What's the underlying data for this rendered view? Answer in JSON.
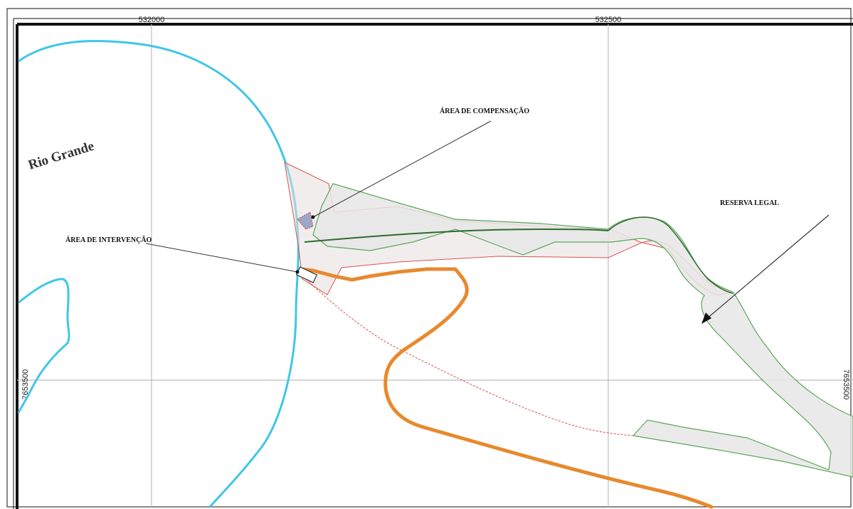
{
  "map": {
    "grid_labels": {
      "x_left": "532000",
      "x_right": "532500",
      "y_left": "7653500",
      "y_right": "7653500"
    },
    "labels": {
      "river": "Rio Grande",
      "compensation_area": "ÁREA DE COMPENSAÇÃO",
      "intervention_area": "ÁREA DE INTERVENÇÃO",
      "legal_reserve": "RESERVA LEGAL"
    },
    "colors": {
      "river": "#3fc6e8",
      "road": "#e8892d",
      "property_boundary": "#d9534f",
      "reserve_outline": "#5aa65a",
      "reserve_fill": "#e8e6e6",
      "grid": "#bdbdbd",
      "frame": "#111111"
    }
  }
}
